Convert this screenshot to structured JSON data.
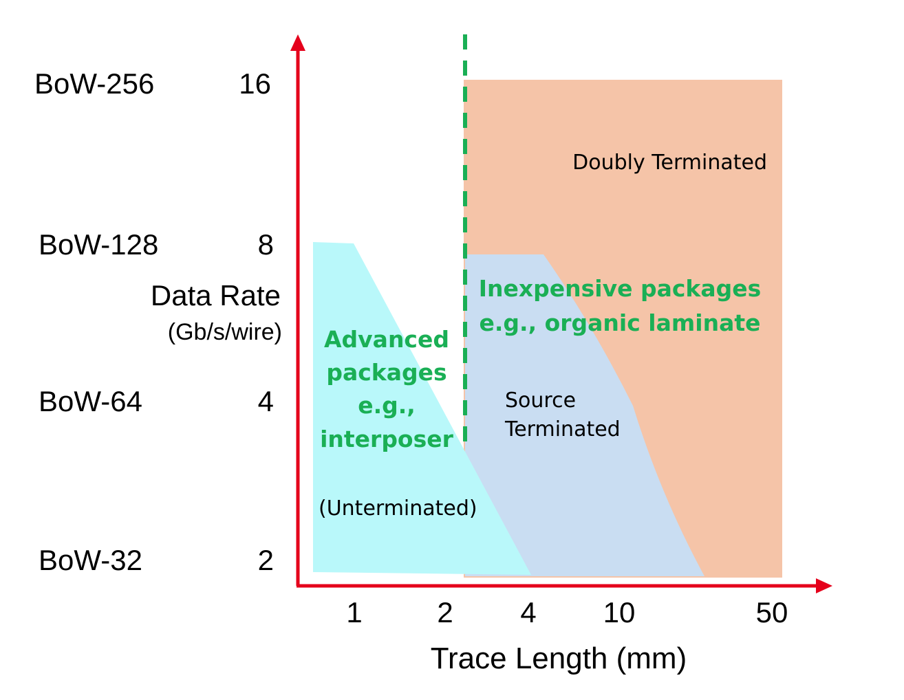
{
  "colors": {
    "axis": "#e5001b",
    "divider": "#1aaf55",
    "doubly_fill": "#f5c4a8",
    "source_fill": "#c9ddf2",
    "unterminated_fill": "#b9f8fa",
    "green_text": "#1aaf55",
    "text": "#000000"
  },
  "y_axis": {
    "title": "Data Rate",
    "unit": "(Gb/s/wire)",
    "levels": [
      {
        "name": "BoW-256",
        "rate": "16"
      },
      {
        "name": "BoW-128",
        "rate": "8"
      },
      {
        "name": "BoW-64",
        "rate": "4"
      },
      {
        "name": "BoW-32",
        "rate": "2"
      }
    ]
  },
  "x_axis": {
    "title": "Trace Length (mm)",
    "ticks": [
      "1",
      "2",
      "4",
      "10",
      "50"
    ]
  },
  "regions": {
    "doubly": "Doubly Terminated",
    "source_line1": "Source",
    "source_line2": "Terminated",
    "unterminated": "(Unterminated)"
  },
  "package_labels": {
    "advanced": [
      "Advanced",
      "packages",
      "e.g.,",
      "interposer"
    ],
    "inexpensive": [
      "Inexpensive packages",
      "e.g., organic laminate"
    ]
  },
  "icons": {
    "y_axis_arrow": "arrow-up-icon",
    "x_axis_arrow": "arrow-right-icon"
  }
}
